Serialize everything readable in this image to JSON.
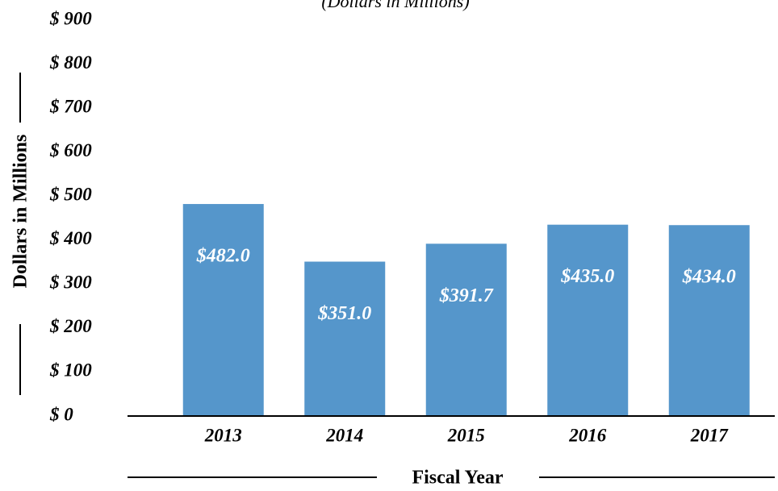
{
  "chart_data": {
    "type": "bar",
    "subtitle": "(Dollars in Millions)",
    "y_label": "Dollars in Millions",
    "x_label": "Fiscal Year",
    "categories": [
      "2013",
      "2014",
      "2015",
      "2016",
      "2017"
    ],
    "values": [
      482.0,
      351.0,
      391.7,
      435.0,
      434.0
    ],
    "value_labels": [
      "$482.0",
      "$351.0",
      "$391.7",
      "$435.0",
      "$434.0"
    ],
    "color": "#5596cb",
    "ylim": [
      0,
      900
    ],
    "yticks": [
      {
        "value": 0,
        "label": "$ 0"
      },
      {
        "value": 100,
        "label": "$ 100"
      },
      {
        "value": 200,
        "label": "$ 200"
      },
      {
        "value": 300,
        "label": "$ 300"
      },
      {
        "value": 400,
        "label": "$ 400"
      },
      {
        "value": 500,
        "label": "$ 500"
      },
      {
        "value": 600,
        "label": "$ 600"
      },
      {
        "value": 700,
        "label": "$ 700"
      },
      {
        "value": 800,
        "label": "$ 800"
      },
      {
        "value": 900,
        "label": "$ 900"
      }
    ],
    "grid": false
  }
}
